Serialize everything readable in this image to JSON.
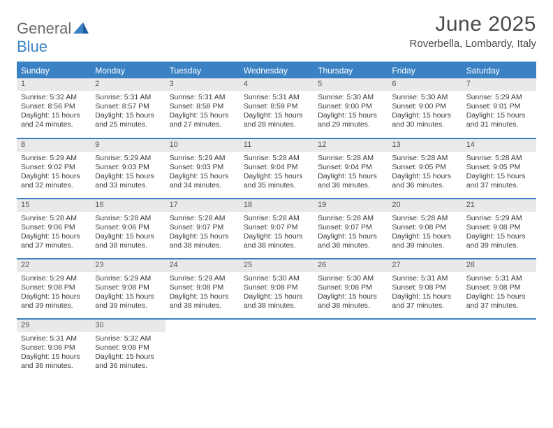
{
  "logo": {
    "text1": "General",
    "text2": "Blue"
  },
  "title": "June 2025",
  "location": "Roverbella, Lombardy, Italy",
  "colors": {
    "header_bg": "#3b82c4",
    "header_text": "#ffffff",
    "daynum_bg": "#e9e9e9",
    "border": "#3b82c4",
    "text": "#3a3a3a",
    "logo_gray": "#6a6a6a",
    "logo_blue": "#3b82c4"
  },
  "day_headers": [
    "Sunday",
    "Monday",
    "Tuesday",
    "Wednesday",
    "Thursday",
    "Friday",
    "Saturday"
  ],
  "weeks": [
    [
      {
        "n": "1",
        "sr": "5:32 AM",
        "ss": "8:56 PM",
        "dl": "15 hours and 24 minutes."
      },
      {
        "n": "2",
        "sr": "5:31 AM",
        "ss": "8:57 PM",
        "dl": "15 hours and 25 minutes."
      },
      {
        "n": "3",
        "sr": "5:31 AM",
        "ss": "8:58 PM",
        "dl": "15 hours and 27 minutes."
      },
      {
        "n": "4",
        "sr": "5:31 AM",
        "ss": "8:59 PM",
        "dl": "15 hours and 28 minutes."
      },
      {
        "n": "5",
        "sr": "5:30 AM",
        "ss": "9:00 PM",
        "dl": "15 hours and 29 minutes."
      },
      {
        "n": "6",
        "sr": "5:30 AM",
        "ss": "9:00 PM",
        "dl": "15 hours and 30 minutes."
      },
      {
        "n": "7",
        "sr": "5:29 AM",
        "ss": "9:01 PM",
        "dl": "15 hours and 31 minutes."
      }
    ],
    [
      {
        "n": "8",
        "sr": "5:29 AM",
        "ss": "9:02 PM",
        "dl": "15 hours and 32 minutes."
      },
      {
        "n": "9",
        "sr": "5:29 AM",
        "ss": "9:03 PM",
        "dl": "15 hours and 33 minutes."
      },
      {
        "n": "10",
        "sr": "5:29 AM",
        "ss": "9:03 PM",
        "dl": "15 hours and 34 minutes."
      },
      {
        "n": "11",
        "sr": "5:28 AM",
        "ss": "9:04 PM",
        "dl": "15 hours and 35 minutes."
      },
      {
        "n": "12",
        "sr": "5:28 AM",
        "ss": "9:04 PM",
        "dl": "15 hours and 36 minutes."
      },
      {
        "n": "13",
        "sr": "5:28 AM",
        "ss": "9:05 PM",
        "dl": "15 hours and 36 minutes."
      },
      {
        "n": "14",
        "sr": "5:28 AM",
        "ss": "9:05 PM",
        "dl": "15 hours and 37 minutes."
      }
    ],
    [
      {
        "n": "15",
        "sr": "5:28 AM",
        "ss": "9:06 PM",
        "dl": "15 hours and 37 minutes."
      },
      {
        "n": "16",
        "sr": "5:28 AM",
        "ss": "9:06 PM",
        "dl": "15 hours and 38 minutes."
      },
      {
        "n": "17",
        "sr": "5:28 AM",
        "ss": "9:07 PM",
        "dl": "15 hours and 38 minutes."
      },
      {
        "n": "18",
        "sr": "5:28 AM",
        "ss": "9:07 PM",
        "dl": "15 hours and 38 minutes."
      },
      {
        "n": "19",
        "sr": "5:28 AM",
        "ss": "9:07 PM",
        "dl": "15 hours and 38 minutes."
      },
      {
        "n": "20",
        "sr": "5:28 AM",
        "ss": "9:08 PM",
        "dl": "15 hours and 39 minutes."
      },
      {
        "n": "21",
        "sr": "5:29 AM",
        "ss": "9:08 PM",
        "dl": "15 hours and 39 minutes."
      }
    ],
    [
      {
        "n": "22",
        "sr": "5:29 AM",
        "ss": "9:08 PM",
        "dl": "15 hours and 39 minutes."
      },
      {
        "n": "23",
        "sr": "5:29 AM",
        "ss": "9:08 PM",
        "dl": "15 hours and 39 minutes."
      },
      {
        "n": "24",
        "sr": "5:29 AM",
        "ss": "9:08 PM",
        "dl": "15 hours and 38 minutes."
      },
      {
        "n": "25",
        "sr": "5:30 AM",
        "ss": "9:08 PM",
        "dl": "15 hours and 38 minutes."
      },
      {
        "n": "26",
        "sr": "5:30 AM",
        "ss": "9:08 PM",
        "dl": "15 hours and 38 minutes."
      },
      {
        "n": "27",
        "sr": "5:31 AM",
        "ss": "9:08 PM",
        "dl": "15 hours and 37 minutes."
      },
      {
        "n": "28",
        "sr": "5:31 AM",
        "ss": "9:08 PM",
        "dl": "15 hours and 37 minutes."
      }
    ],
    [
      {
        "n": "29",
        "sr": "5:31 AM",
        "ss": "9:08 PM",
        "dl": "15 hours and 36 minutes."
      },
      {
        "n": "30",
        "sr": "5:32 AM",
        "ss": "9:08 PM",
        "dl": "15 hours and 36 minutes."
      },
      null,
      null,
      null,
      null,
      null
    ]
  ],
  "labels": {
    "sunrise": "Sunrise:",
    "sunset": "Sunset:",
    "daylight": "Daylight:"
  }
}
